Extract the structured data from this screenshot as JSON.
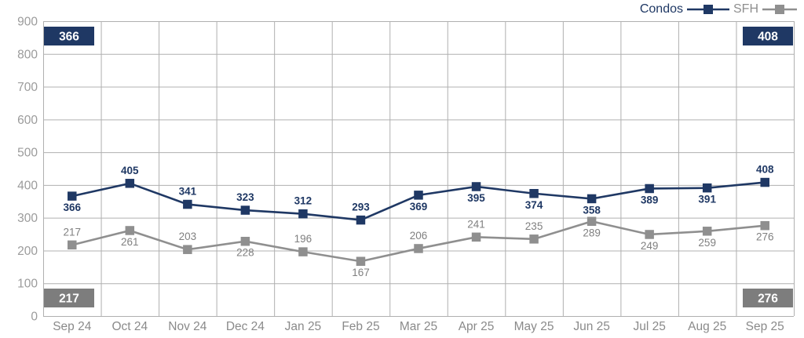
{
  "chart_data": {
    "type": "line",
    "title": "",
    "xlabel": "",
    "ylabel": "",
    "categories": [
      "Sep 24",
      "Oct 24",
      "Nov 24",
      "Dec 24",
      "Jan 25",
      "Feb 25",
      "Mar 25",
      "Apr 25",
      "May 25",
      "Jun 25",
      "Jul 25",
      "Aug 25",
      "Sep 25"
    ],
    "series": [
      {
        "name": "Condos",
        "color": "#1f3864",
        "label_color": "#1f3864",
        "label_bold": true,
        "values": [
          366,
          405,
          341,
          323,
          312,
          293,
          369,
          395,
          374,
          358,
          389,
          391,
          408
        ],
        "label_side": [
          "below",
          "above",
          "above",
          "above",
          "above",
          "above",
          "below",
          "below",
          "below",
          "below",
          "below",
          "below",
          "above"
        ]
      },
      {
        "name": "SFH",
        "color": "#8f8f8f",
        "label_color": "#808080",
        "label_bold": false,
        "values": [
          217,
          261,
          203,
          228,
          196,
          167,
          206,
          241,
          235,
          289,
          249,
          259,
          276
        ],
        "label_side": [
          "above",
          "below",
          "above",
          "below",
          "above",
          "below",
          "above",
          "above",
          "above",
          "below",
          "below",
          "below",
          "below"
        ]
      }
    ],
    "ylim": [
      0,
      900
    ],
    "ytick_step": 100,
    "grid": true,
    "legend_position": "top-right",
    "marker": "square",
    "callouts": [
      {
        "position": "top-left",
        "value": "366",
        "color": "#1f3864",
        "text_color": "#ffffff"
      },
      {
        "position": "top-right",
        "value": "408",
        "color": "#1f3864",
        "text_color": "#ffffff"
      },
      {
        "position": "bottom-left",
        "value": "217",
        "color": "#7d7d7d",
        "text_color": "#ffffff"
      },
      {
        "position": "bottom-right",
        "value": "276",
        "color": "#7d7d7d",
        "text_color": "#ffffff"
      }
    ],
    "colors": {
      "gridline": "#b0b0b0",
      "y_tick_label": "#9b9b9b",
      "x_tick_label": "#8a8a8a"
    }
  }
}
